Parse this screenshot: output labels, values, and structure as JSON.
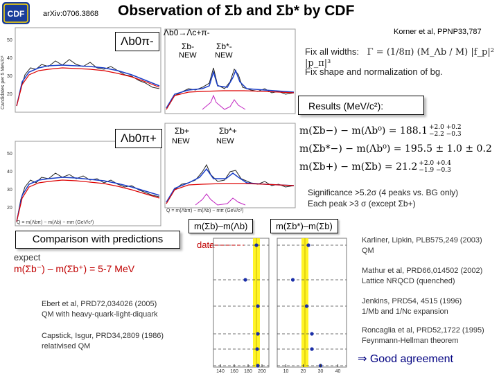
{
  "header": {
    "logo_text": "CDF",
    "arxiv": "arXiv:0706.3868",
    "title": "Observation of Σb and Σb* by CDF"
  },
  "plots": {
    "top_label": "Λb0π-",
    "bottom_label": "Λb0π+",
    "top_decay": "Λb0→Λc+π-",
    "top_sigma": "Σb-",
    "top_sigma_star": "Σb*-",
    "bottom_sigma": "Σb+",
    "bottom_sigma_star": "Σb*+",
    "new": "NEW",
    "ylabel": "Candidates per 5 MeV/c²",
    "xlabel_left": "Q = m(Λbπ) − m(Λb) − mπ  (GeV/c²)",
    "xlabel_right": "Q = m(Λbπ) − m(Λb) − mπ  (GeV/c²)"
  },
  "fit": {
    "korner_ref": "Korner et al, PPNP33,787",
    "fix_widths": "Fix all widths:",
    "formula": "Γ = (1/8π) (M_Λb / M) |f_p|² |p_π|³",
    "fix_shape": "Fix shape and normalization of bg."
  },
  "results": {
    "title": "Results (MeV/c²):",
    "rows": [
      {
        "lhs": "m(Σb−) − m(Λb⁰) = 188.1",
        "sup": "+2.0 +0.2",
        "sub": "−2.2 −0.3"
      },
      {
        "lhs": "m(Σb*−) − m(Λb⁰) = 195.5 ± 1.0 ± 0.2",
        "sup": "",
        "sub": ""
      },
      {
        "lhs": "m(Σb+) − m(Σb) = 21.2",
        "sup": "+2.0 +0.4",
        "sub": "−1.9 −0.3"
      }
    ],
    "significance_line1": "Significance >5.2σ (4 peaks vs. BG only)",
    "significance_line2": "Each peak >3 σ (except Σb+)"
  },
  "comparison": {
    "title": "Comparison with predictions",
    "expect": "expect",
    "expect_value": "m(Σb⁻) – m(Σb⁺) = 5-7 MeV",
    "col1_header": "m(Σb)–m(Λb)",
    "col2_header": "m(Σb*)–m(Σb)",
    "data_label": "data",
    "refs_left": [
      {
        "line1": "Ebert et al, PRD72,034026 (2005)",
        "line2": "QM with heavy-quark-light-diquark"
      },
      {
        "line1": "Capstick, Isgur, PRD34,2809 (1986)",
        "line2": "relativised QM"
      }
    ],
    "refs_right": [
      {
        "line1": "Karliner, Lipkin, PLB575,249 (2003)",
        "line2": "QM"
      },
      {
        "line1": "Mathur et al, PRD66,014502 (2002)",
        "line2": "Lattice NRQCD (quenched)"
      },
      {
        "line1": "Jenkins, PRD54, 4515 (1996)",
        "line2": "1/Mb and 1/Nc expansion"
      },
      {
        "line1": "Roncaglia et al, PRD52,1722 (1995)",
        "line2": "Feynmann-Hellman theorem"
      }
    ],
    "conclusion": "⇒ Good agreement"
  },
  "chart_data": [
    {
      "type": "scatter",
      "title": "m(Σb)–m(Λb)",
      "x_ticks": [
        140,
        160,
        180,
        200
      ],
      "data_value": 192,
      "predictions": [
        {
          "name": "Karliner, Lipkin",
          "x": 192
        },
        {
          "name": "Mathur et al",
          "x": 176
        },
        {
          "name": "Jenkins",
          "x": 194
        },
        {
          "name": "Roncaglia et al",
          "x": 194
        },
        {
          "name": "Ebert et al",
          "x": 193
        },
        {
          "name": "Capstick, Isgur",
          "x": 194
        }
      ]
    },
    {
      "type": "scatter",
      "title": "m(Σb*)–m(Σb)",
      "x_ticks": [
        10,
        20,
        30,
        40
      ],
      "data_value": 21,
      "predictions": [
        {
          "name": "Karliner, Lipkin",
          "x": 23
        },
        {
          "name": "Mathur et al",
          "x": 14
        },
        {
          "name": "Jenkins",
          "x": 22
        },
        {
          "name": "Roncaglia et al",
          "x": 25
        },
        {
          "name": "Ebert et al",
          "x": 25
        },
        {
          "name": "Capstick, Isgur",
          "x": 30
        }
      ]
    }
  ]
}
